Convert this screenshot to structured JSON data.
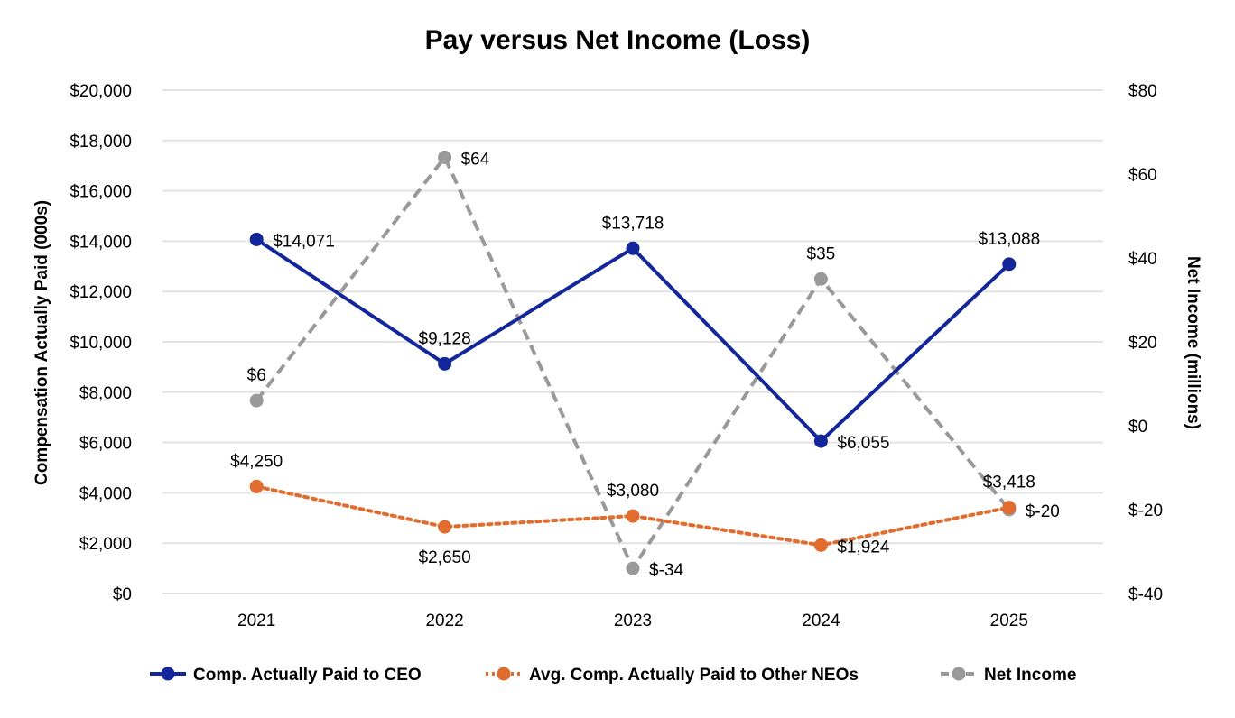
{
  "chart_data": {
    "type": "line",
    "title": "Pay versus Net Income (Loss)",
    "categories": [
      "2021",
      "2022",
      "2023",
      "2024",
      "2025"
    ],
    "y_left": {
      "label": "Compensation Actually Paid (000s)",
      "range": [
        0,
        20000
      ],
      "ticks": [
        0,
        2000,
        4000,
        6000,
        8000,
        10000,
        12000,
        14000,
        16000,
        18000,
        20000
      ],
      "tick_labels": [
        "$0",
        "$2,000",
        "$4,000",
        "$6,000",
        "$8,000",
        "$10,000",
        "$12,000",
        "$14,000",
        "$16,000",
        "$18,000",
        "$20,000"
      ]
    },
    "y_right": {
      "label": "Net Income (millions)",
      "range": [
        -40,
        80
      ],
      "ticks": [
        -40,
        -20,
        0,
        20,
        40,
        60,
        80
      ],
      "tick_labels": [
        "$-40",
        "$-20",
        "$0",
        "$20",
        "$40",
        "$60",
        "$80"
      ]
    },
    "grid": true,
    "legend_position": "bottom",
    "series": [
      {
        "name": "Comp. Actually Paid to CEO",
        "axis": "left",
        "color": "#13269a",
        "line_style": "solid",
        "values": [
          14071,
          9128,
          13718,
          6055,
          13088
        ],
        "data_labels": [
          "$14,071",
          "$9,128",
          "$13,718",
          "$6,055",
          "$13,088"
        ]
      },
      {
        "name": "Avg. Comp. Actually Paid to Other NEOs",
        "axis": "left",
        "color": "#e06c2e",
        "line_style": "dotted",
        "values": [
          4250,
          2650,
          3080,
          1924,
          3418
        ],
        "data_labels": [
          "$4,250",
          "$2,650",
          "$3,080",
          "$1,924",
          "$3,418"
        ]
      },
      {
        "name": "Net Income",
        "axis": "right",
        "color": "#999999",
        "line_style": "dashed",
        "values": [
          6,
          64,
          -34,
          35,
          -20
        ],
        "data_labels": [
          "$6",
          "$64",
          "$-34",
          "$35",
          "$-20"
        ]
      }
    ]
  }
}
